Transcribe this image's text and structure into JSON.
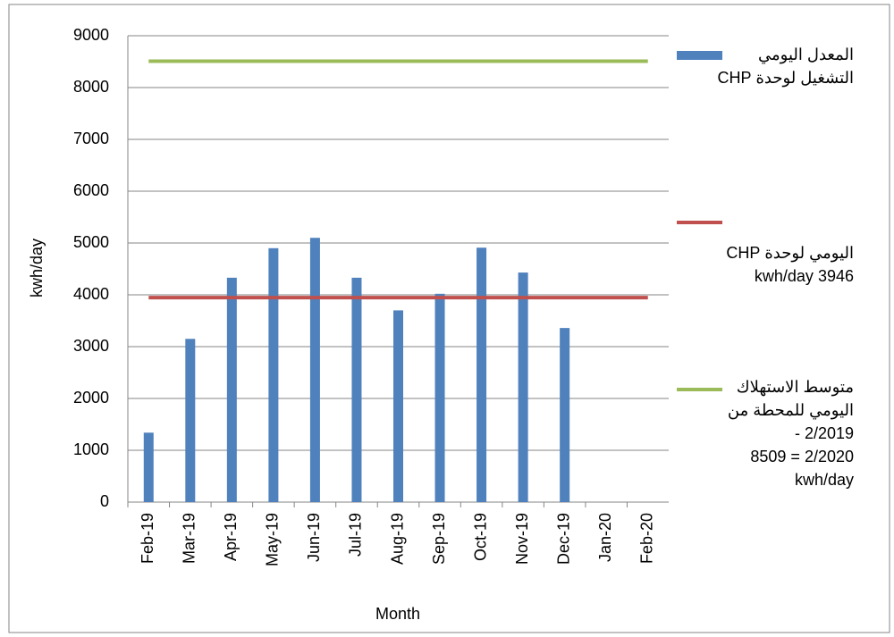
{
  "chart_data": {
    "type": "bar",
    "x_label": "Month",
    "y_label": "kwh/day",
    "categories": [
      "Feb-19",
      "Mar-19",
      "Apr-19",
      "May-19",
      "Jun-19",
      "Jul-19",
      "Aug-19",
      "Sep-19",
      "Oct-19",
      "Nov-19",
      "Dec-19",
      "Jan-20",
      "Feb-20"
    ],
    "series": [
      {
        "name": "المعدل اليومي\nالتشغيل لوحدة CHP",
        "type": "bar",
        "color": "#4f81bd",
        "values": [
          1340,
          3150,
          4330,
          4900,
          5100,
          4330,
          3700,
          4020,
          4910,
          4430,
          3360,
          null,
          null
        ]
      },
      {
        "name": "اليومي لوحدة  CHP\n3946 kwh/day",
        "type": "line",
        "color": "#c0504d",
        "values": [
          3946,
          3946,
          3946,
          3946,
          3946,
          3946,
          3946,
          3946,
          3946,
          3946,
          3946,
          3946,
          3946
        ]
      },
      {
        "name": "متوسط الاستهلاك\nاليومي للمحطة من\n2/2019 -\n2/2020 = 8509\nkwh/day",
        "type": "line",
        "color": "#9bbb59",
        "values": [
          8509,
          8509,
          8509,
          8509,
          8509,
          8509,
          8509,
          8509,
          8509,
          8509,
          8509,
          8509,
          8509
        ]
      }
    ],
    "ylim": [
      0,
      9000
    ],
    "yticks": [
      0,
      1000,
      2000,
      3000,
      4000,
      5000,
      6000,
      7000,
      8000,
      9000
    ],
    "grid": true,
    "legend": "right"
  }
}
